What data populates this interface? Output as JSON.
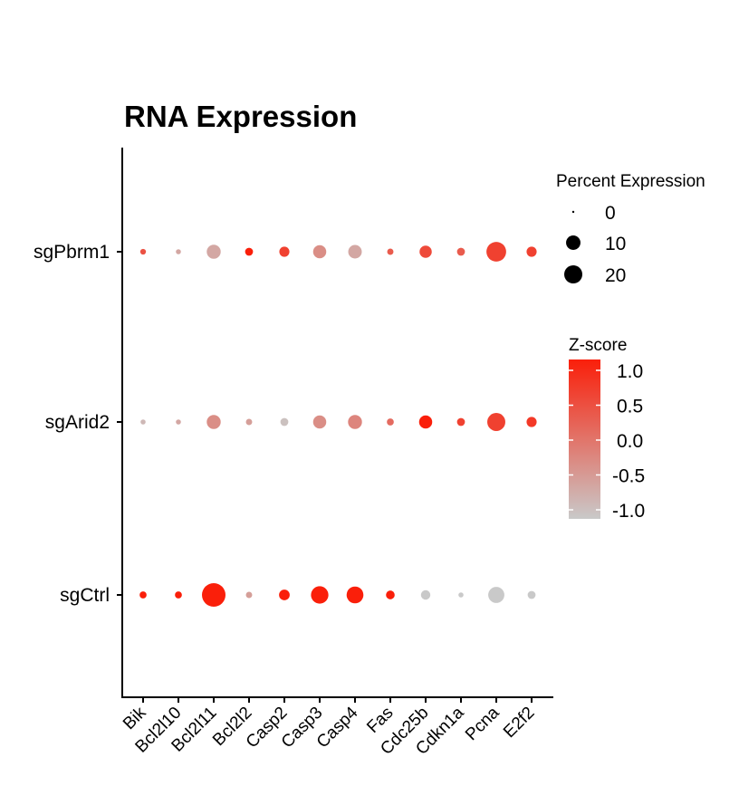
{
  "chart_data": {
    "type": "dotplot",
    "title": "RNA Expression",
    "xlabel": "",
    "ylabel": "",
    "genes": [
      "Bik",
      "Bcl2l10",
      "Bcl2l11",
      "Bcl2l2",
      "Casp2",
      "Casp3",
      "Casp4",
      "Fas",
      "Cdc25b",
      "Cdkn1a",
      "Pcna",
      "E2f2"
    ],
    "groups": [
      "sgPbrm1",
      "sgArid2",
      "sgCtrl"
    ],
    "percent_expression": {
      "sgPbrm1": [
        0.5,
        0.3,
        7,
        1.5,
        3,
        6,
        6.5,
        0.7,
        5,
        1.5,
        16,
        3
      ],
      "sgArid2": [
        0.3,
        0.3,
        7,
        0.7,
        1.5,
        6,
        7,
        1,
        6,
        1.5,
        13,
        3
      ],
      "sgCtrl": [
        1,
        1,
        24,
        0.7,
        3.5,
        12,
        11,
        2,
        2.5,
        0.3,
        10,
        1.5
      ]
    },
    "zscore": {
      "sgPbrm1": [
        0.4,
        -0.6,
        -0.6,
        1.0,
        0.6,
        -0.3,
        -0.6,
        0.3,
        0.5,
        0.3,
        0.6,
        0.6
      ],
      "sgArid2": [
        -0.8,
        -0.6,
        -0.3,
        -0.5,
        -0.9,
        -0.3,
        -0.2,
        0.1,
        1.0,
        0.6,
        0.6,
        0.7
      ],
      "sgCtrl": [
        1.0,
        1.0,
        1.0,
        -0.5,
        1.0,
        1.0,
        1.0,
        1.0,
        -1.0,
        -1.0,
        -1.0,
        -1.0
      ]
    },
    "size_legend": {
      "title": "Percent Expression",
      "values": [
        0,
        10,
        20
      ]
    },
    "color_legend": {
      "title": "Z-score",
      "ticks": [
        "1.0",
        "0.5",
        "0.0",
        "-0.5",
        "-1.0"
      ],
      "range": [
        -1.0,
        1.0
      ],
      "low_color": "#c9c9c9",
      "high_color": "#fa1f0a"
    }
  }
}
